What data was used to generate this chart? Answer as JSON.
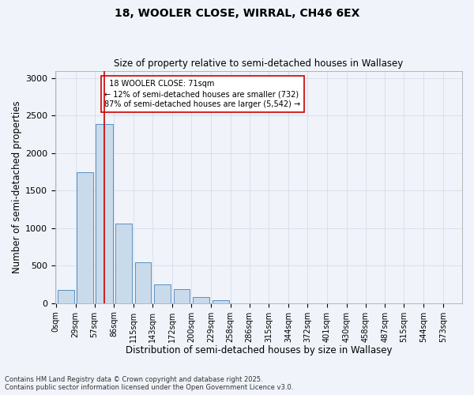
{
  "title_line1": "18, WOOLER CLOSE, WIRRAL, CH46 6EX",
  "title_line2": "Size of property relative to semi-detached houses in Wallasey",
  "xlabel": "Distribution of semi-detached houses by size in Wallasey",
  "ylabel": "Number of semi-detached properties",
  "bar_labels": [
    "0sqm",
    "29sqm",
    "57sqm",
    "86sqm",
    "115sqm",
    "143sqm",
    "172sqm",
    "200sqm",
    "229sqm",
    "258sqm",
    "286sqm",
    "315sqm",
    "344sqm",
    "372sqm",
    "401sqm",
    "430sqm",
    "458sqm",
    "487sqm",
    "515sqm",
    "544sqm",
    "573sqm"
  ],
  "bar_values": [
    175,
    1750,
    2390,
    1060,
    540,
    250,
    185,
    80,
    35,
    0,
    0,
    0,
    0,
    0,
    0,
    0,
    0,
    0,
    0,
    0,
    0
  ],
  "bar_color": "#c9daea",
  "bar_edge_color": "#5a8fc0",
  "property_label": "18 WOOLER CLOSE: 71sqm",
  "pct_smaller": 12,
  "pct_larger": 87,
  "n_smaller": 732,
  "n_larger": 5542,
  "vline_x": 71,
  "vline_color": "#cc0000",
  "annotation_box_color": "#cc0000",
  "ylim": [
    0,
    3100
  ],
  "yticks": [
    0,
    500,
    1000,
    1500,
    2000,
    2500,
    3000
  ],
  "background_color": "#f0f4fa",
  "grid_color": "#d0d8e8",
  "footer_text": "Contains HM Land Registry data © Crown copyright and database right 2025.\nContains public sector information licensed under the Open Government Licence v3.0.",
  "bin_edges": [
    0,
    29,
    57,
    86,
    115,
    143,
    172,
    200,
    229,
    258,
    286,
    315,
    344,
    372,
    401,
    430,
    458,
    487,
    515,
    544,
    573,
    601
  ]
}
